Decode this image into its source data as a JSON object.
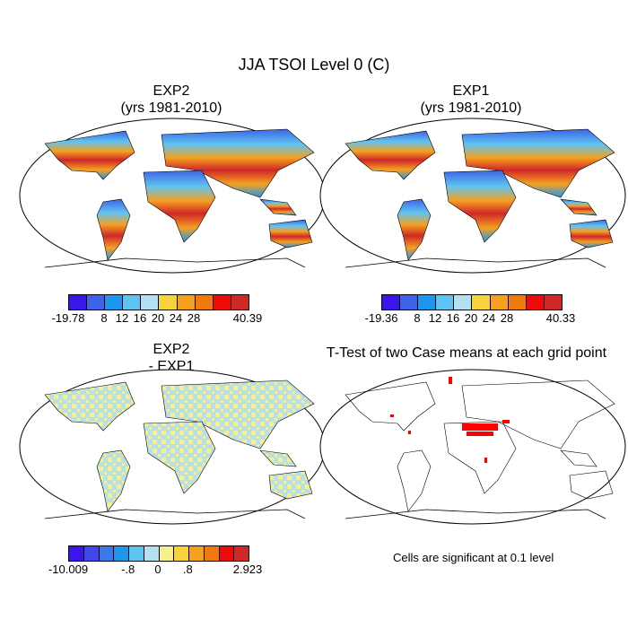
{
  "title": "JJA TSOI Level 0 (C)",
  "panels": {
    "top_left": {
      "title_line1": "EXP2",
      "title_line2": "(yrs 1981-2010)"
    },
    "top_right": {
      "title_line1": "EXP1",
      "title_line2": "(yrs 1981-2010)"
    },
    "bottom_left": {
      "title_line1": "EXP2",
      "title_line2": "- EXP1"
    },
    "bottom_right": {
      "title_line1": "T-Test of two Case means at each grid point"
    }
  },
  "colorbars": {
    "exp2": {
      "colors": [
        "#3a16e8",
        "#3d63e6",
        "#1f96ee",
        "#5fc3f2",
        "#b4e0f3",
        "#f7d23c",
        "#f5a020",
        "#f07a10",
        "#f00a0a",
        "#d02828"
      ],
      "ticks": [
        "-19.78",
        "8",
        "12",
        "16",
        "20",
        "24",
        "28",
        "40.39"
      ]
    },
    "exp1": {
      "colors": [
        "#3a16e8",
        "#3d63e6",
        "#1f96ee",
        "#5fc3f2",
        "#b4e0f3",
        "#f7d23c",
        "#f5a020",
        "#f07a10",
        "#f00a0a",
        "#d02828"
      ],
      "ticks": [
        "-19.36",
        "8",
        "12",
        "16",
        "20",
        "24",
        "28",
        "40.33"
      ]
    },
    "diff": {
      "colors": [
        "#3a16e8",
        "#3d48e6",
        "#3b78ea",
        "#1f96ee",
        "#5fc3f2",
        "#b4e0f3",
        "#f8f08c",
        "#f7d23c",
        "#f5a020",
        "#f07a10",
        "#f00a0a",
        "#d02828"
      ],
      "ticks": [
        "-10.009",
        "-.8",
        "0",
        ".8",
        "2.923"
      ]
    }
  },
  "significance_note": "Cells are significant at 0.1 level",
  "colors": {
    "significant": "#ff0000",
    "outline": "#000000"
  }
}
